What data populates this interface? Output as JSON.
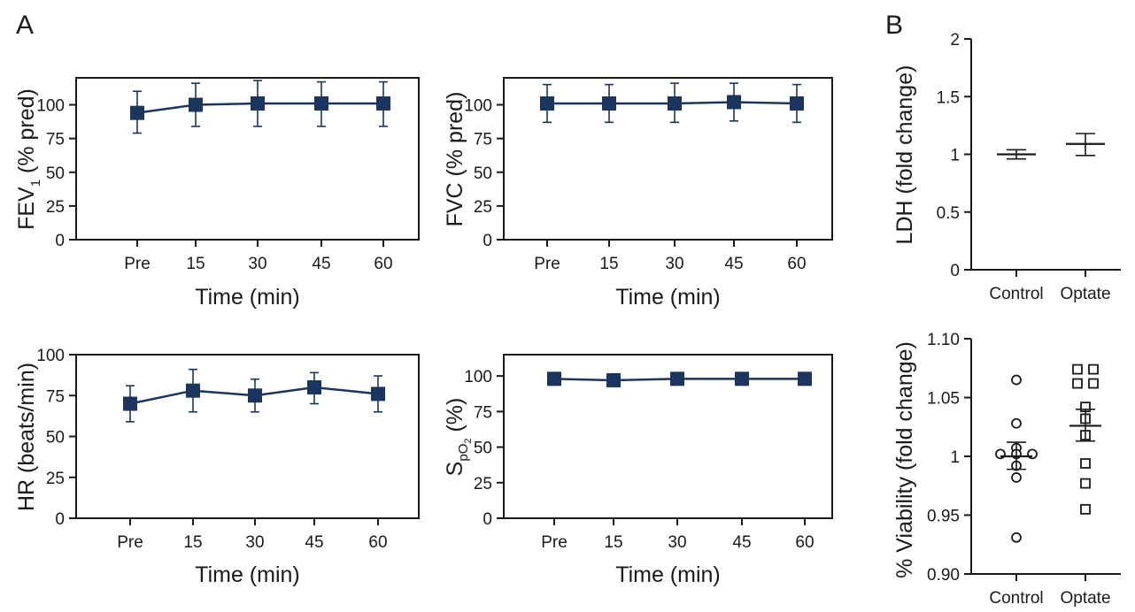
{
  "panel_labels": [
    "A",
    "B"
  ],
  "colors": {
    "series": "#1b355e",
    "axis": "#1a1a1a",
    "background": "#ffffff"
  },
  "chart_data": [
    {
      "id": "fev1",
      "type": "line",
      "xlabel": "Time (min)",
      "ylabel": "FEV1 (% pred)",
      "ylabel_parts": [
        "FEV",
        "1",
        " (% pred)"
      ],
      "categories": [
        "Pre",
        "15",
        "30",
        "45",
        "60"
      ],
      "yticks": [
        0,
        25,
        50,
        75,
        100
      ],
      "ylim": [
        0,
        120
      ],
      "marker": "filled-square",
      "series": [
        {
          "values": [
            94,
            100,
            101,
            101,
            101
          ],
          "err_low": [
            79,
            84,
            84,
            84,
            84
          ],
          "err_high": [
            110,
            116,
            118,
            117,
            117
          ]
        }
      ]
    },
    {
      "id": "fvc",
      "type": "line",
      "xlabel": "Time (min)",
      "ylabel": "FVC (% pred)",
      "categories": [
        "Pre",
        "15",
        "30",
        "45",
        "60"
      ],
      "yticks": [
        0,
        25,
        50,
        75,
        100
      ],
      "ylim": [
        0,
        120
      ],
      "marker": "filled-square",
      "series": [
        {
          "values": [
            101,
            101,
            101,
            102,
            101
          ],
          "err_low": [
            87,
            87,
            87,
            88,
            87
          ],
          "err_high": [
            115,
            115,
            116,
            116,
            115
          ]
        }
      ]
    },
    {
      "id": "hr",
      "type": "line",
      "xlabel": "Time (min)",
      "ylabel": "HR (beats/min)",
      "categories": [
        "Pre",
        "15",
        "30",
        "45",
        "60"
      ],
      "yticks": [
        0,
        25,
        50,
        75,
        100
      ],
      "ylim": [
        0,
        100
      ],
      "marker": "filled-square",
      "series": [
        {
          "values": [
            70,
            78,
            75,
            80,
            76
          ],
          "err_low": [
            59,
            65,
            65,
            70,
            65
          ],
          "err_high": [
            81,
            91,
            85,
            89,
            87
          ]
        }
      ]
    },
    {
      "id": "spo2",
      "type": "line",
      "xlabel": "Time (min)",
      "ylabel": "SpO2 (%)",
      "ylabel_parts": [
        "S",
        "pO",
        "2",
        " (%)"
      ],
      "categories": [
        "Pre",
        "15",
        "30",
        "45",
        "60"
      ],
      "yticks": [
        0,
        25,
        50,
        75,
        100
      ],
      "ylim": [
        0,
        115
      ],
      "marker": "filled-square",
      "series": [
        {
          "values": [
            98,
            97,
            98,
            98,
            98
          ],
          "err_low": [
            97,
            96,
            97,
            97,
            97
          ],
          "err_high": [
            99,
            98,
            99,
            99,
            99
          ]
        }
      ]
    },
    {
      "id": "ldh",
      "type": "scatter",
      "ylabel": "LDH (fold change)",
      "categories": [
        "Control",
        "Optate"
      ],
      "yticks": [
        0,
        0.5,
        1,
        1.5,
        2
      ],
      "ytick_labels": [
        "0",
        "0.5",
        "1",
        "1.5",
        "2"
      ],
      "ylim": [
        0,
        2
      ],
      "summary": [
        {
          "category": "Control",
          "mean": 1.0,
          "err_low": 0.96,
          "err_high": 1.04
        },
        {
          "category": "Optate",
          "mean": 1.09,
          "err_low": 0.99,
          "err_high": 1.18
        }
      ]
    },
    {
      "id": "viability",
      "type": "scatter",
      "ylabel": "% Viability (fold change)",
      "categories": [
        "Control",
        "Optate"
      ],
      "yticks": [
        0.9,
        0.95,
        1.0,
        1.05,
        1.1
      ],
      "ytick_labels": [
        "0.90",
        "0.95",
        "1",
        "1.05",
        "1.10"
      ],
      "ylim": [
        0.9,
        1.1
      ],
      "points": [
        {
          "category": "Control",
          "marker": "open-circle",
          "values": [
            1.065,
            1.028,
            1.007,
            1.002,
            1.002,
            1.002,
            0.992,
            0.982,
            0.931
          ]
        },
        {
          "category": "Optate",
          "marker": "open-square",
          "values": [
            1.074,
            1.074,
            1.062,
            1.062,
            1.042,
            1.032,
            1.018,
            0.994,
            0.977,
            0.955
          ]
        }
      ],
      "summary": [
        {
          "category": "Control",
          "mean": 1.0,
          "err_low": 0.989,
          "err_high": 1.012
        },
        {
          "category": "Optate",
          "mean": 1.026,
          "err_low": 1.013,
          "err_high": 1.04
        }
      ]
    }
  ]
}
